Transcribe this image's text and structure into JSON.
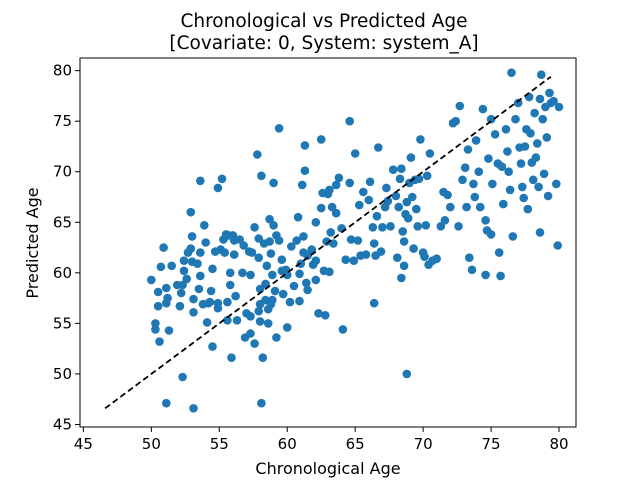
{
  "chart_data": {
    "type": "scatter",
    "title_line1": "Chronological vs Predicted Age",
    "title_line2": "[Covariate: 0, System: system_A]",
    "xlabel": "Chronological Age",
    "ylabel": "Predicted Age",
    "xlim": [
      44.75,
      81.25
    ],
    "ylim": [
      44.75,
      81.25
    ],
    "xticks": [
      45,
      50,
      55,
      60,
      65,
      70,
      75,
      80
    ],
    "yticks": [
      45,
      50,
      55,
      60,
      65,
      70,
      75,
      80
    ],
    "grid": false,
    "legend": "none",
    "point_color": "#1f77b4",
    "identity_line": {
      "x": [
        46.6,
        79.4
      ],
      "y": [
        46.6,
        79.4
      ],
      "color": "#000000",
      "style": "dashed"
    },
    "points": [
      [
        50.0,
        59.3
      ],
      [
        50.3,
        54.4
      ],
      [
        50.5,
        56.7
      ],
      [
        50.3,
        55.0
      ],
      [
        50.6,
        53.2
      ],
      [
        50.5,
        58.1
      ],
      [
        50.7,
        60.6
      ],
      [
        50.9,
        62.5
      ],
      [
        51.1,
        57.0
      ],
      [
        51.1,
        58.5
      ],
      [
        51.2,
        57.5
      ],
      [
        51.3,
        54.3
      ],
      [
        51.5,
        60.7
      ],
      [
        51.9,
        58.8
      ],
      [
        51.1,
        47.1
      ],
      [
        52.1,
        56.7
      ],
      [
        52.2,
        58.0
      ],
      [
        52.3,
        58.8
      ],
      [
        52.4,
        60.2
      ],
      [
        52.4,
        61.2
      ],
      [
        52.6,
        59.4
      ],
      [
        52.7,
        62.0
      ],
      [
        52.9,
        62.4
      ],
      [
        53.0,
        63.6
      ],
      [
        53.0,
        61.1
      ],
      [
        53.1,
        57.4
      ],
      [
        53.1,
        56.1
      ],
      [
        52.9,
        66.0
      ],
      [
        52.3,
        49.7
      ],
      [
        53.1,
        46.6
      ],
      [
        53.4,
        60.9
      ],
      [
        53.5,
        58.4
      ],
      [
        53.6,
        62.0
      ],
      [
        53.6,
        59.7
      ],
      [
        53.6,
        69.1
      ],
      [
        53.8,
        56.9
      ],
      [
        53.9,
        64.7
      ],
      [
        54.0,
        63.0
      ],
      [
        54.1,
        55.1
      ],
      [
        54.2,
        57.0
      ],
      [
        54.3,
        57.1
      ],
      [
        54.4,
        58.2
      ],
      [
        54.5,
        60.4
      ],
      [
        54.5,
        52.7
      ],
      [
        54.7,
        62.1
      ],
      [
        54.9,
        68.4
      ],
      [
        54.9,
        57.0
      ],
      [
        54.9,
        56.5
      ],
      [
        55.1,
        62.3
      ],
      [
        55.2,
        69.3
      ],
      [
        55.3,
        63.3
      ],
      [
        55.4,
        62.0
      ],
      [
        55.5,
        63.8
      ],
      [
        55.6,
        57.1
      ],
      [
        55.6,
        55.3
      ],
      [
        55.7,
        63.7
      ],
      [
        55.8,
        60.0
      ],
      [
        55.8,
        58.8
      ],
      [
        55.9,
        51.6
      ],
      [
        56.0,
        63.7
      ],
      [
        56.1,
        63.2
      ],
      [
        56.1,
        61.8
      ],
      [
        56.2,
        57.7
      ],
      [
        56.3,
        55.3
      ],
      [
        56.5,
        63.3
      ],
      [
        56.7,
        60.0
      ],
      [
        56.8,
        62.7
      ],
      [
        56.9,
        53.6
      ],
      [
        57.0,
        56.0
      ],
      [
        57.2,
        62.1
      ],
      [
        57.3,
        59.8
      ],
      [
        57.3,
        55.7
      ],
      [
        57.3,
        54.0
      ],
      [
        57.4,
        62.0
      ],
      [
        57.6,
        64.5
      ],
      [
        57.6,
        53.0
      ],
      [
        57.8,
        71.7
      ],
      [
        57.9,
        63.4
      ],
      [
        57.9,
        61.5
      ],
      [
        57.9,
        56.2
      ],
      [
        58.0,
        58.4
      ],
      [
        58.0,
        56.9
      ],
      [
        58.0,
        55.2
      ],
      [
        58.1,
        69.6
      ],
      [
        58.1,
        47.1
      ],
      [
        58.2,
        51.6
      ],
      [
        58.3,
        62.9
      ],
      [
        58.4,
        58.9
      ],
      [
        58.4,
        57.3
      ],
      [
        58.5,
        60.7
      ],
      [
        58.6,
        56.4
      ],
      [
        58.6,
        55.0
      ],
      [
        58.7,
        65.3
      ],
      [
        58.7,
        63.1
      ],
      [
        58.8,
        61.9
      ],
      [
        58.8,
        56.9
      ],
      [
        58.9,
        59.8
      ],
      [
        58.9,
        57.3
      ],
      [
        59.0,
        68.9
      ],
      [
        59.0,
        64.7
      ],
      [
        59.1,
        58.2
      ],
      [
        59.2,
        63.7
      ],
      [
        59.2,
        53.6
      ],
      [
        59.4,
        63.2
      ],
      [
        59.4,
        74.3
      ],
      [
        59.6,
        61.3
      ],
      [
        59.6,
        60.2
      ],
      [
        59.7,
        57.9
      ],
      [
        59.9,
        60.3
      ],
      [
        60.0,
        59.8
      ],
      [
        60.0,
        54.6
      ],
      [
        60.2,
        57.1
      ],
      [
        60.3,
        62.6
      ],
      [
        60.5,
        58.7
      ],
      [
        60.7,
        63.2
      ],
      [
        60.8,
        65.5
      ],
      [
        60.9,
        59.9
      ],
      [
        60.9,
        57.2
      ],
      [
        61.0,
        60.9
      ],
      [
        61.1,
        68.7
      ],
      [
        61.2,
        63.6
      ],
      [
        61.2,
        62.0
      ],
      [
        61.3,
        72.6
      ],
      [
        61.3,
        70.1
      ],
      [
        61.4,
        59.0
      ],
      [
        61.5,
        61.7
      ],
      [
        61.5,
        58.3
      ],
      [
        61.8,
        62.3
      ],
      [
        61.9,
        60.8
      ],
      [
        62.1,
        61.2
      ],
      [
        62.1,
        59.3
      ],
      [
        62.1,
        65.0
      ],
      [
        62.3,
        56.0
      ],
      [
        62.5,
        66.4
      ],
      [
        62.5,
        73.2
      ],
      [
        62.6,
        67.9
      ],
      [
        62.7,
        60.2
      ],
      [
        62.8,
        55.8
      ],
      [
        62.9,
        63.1
      ],
      [
        63.0,
        67.8
      ],
      [
        63.1,
        68.2
      ],
      [
        63.1,
        60.1
      ],
      [
        63.2,
        64.0
      ],
      [
        63.3,
        66.5
      ],
      [
        63.4,
        62.9
      ],
      [
        63.6,
        65.9
      ],
      [
        63.6,
        68.7
      ],
      [
        63.8,
        69.4
      ],
      [
        64.0,
        64.4
      ],
      [
        64.1,
        54.4
      ],
      [
        64.3,
        61.3
      ],
      [
        64.6,
        68.9
      ],
      [
        64.6,
        75.0
      ],
      [
        64.7,
        63.3
      ],
      [
        64.9,
        61.2
      ],
      [
        65.0,
        71.8
      ],
      [
        65.2,
        63.2
      ],
      [
        65.3,
        66.7
      ],
      [
        65.4,
        61.7
      ],
      [
        65.6,
        68.0
      ],
      [
        65.8,
        61.8
      ],
      [
        66.0,
        67.2
      ],
      [
        66.1,
        69.0
      ],
      [
        66.3,
        64.5
      ],
      [
        66.4,
        62.9
      ],
      [
        66.4,
        57.0
      ],
      [
        66.5,
        61.7
      ],
      [
        66.6,
        65.6
      ],
      [
        66.7,
        72.4
      ],
      [
        66.9,
        62.1
      ],
      [
        67.0,
        64.5
      ],
      [
        67.2,
        66.5
      ],
      [
        67.3,
        68.4
      ],
      [
        67.4,
        67.1
      ],
      [
        67.6,
        64.6
      ],
      [
        67.8,
        70.2
      ],
      [
        68.0,
        67.6
      ],
      [
        68.1,
        61.5
      ],
      [
        68.2,
        66.5
      ],
      [
        68.3,
        69.3
      ],
      [
        68.4,
        70.3
      ],
      [
        68.4,
        59.5
      ],
      [
        68.5,
        64.1
      ],
      [
        68.6,
        63.1
      ],
      [
        68.6,
        60.7
      ],
      [
        68.7,
        65.8
      ],
      [
        68.8,
        67.0
      ],
      [
        68.8,
        50.0
      ],
      [
        68.9,
        65.4
      ],
      [
        69.0,
        68.9
      ],
      [
        69.1,
        71.4
      ],
      [
        69.2,
        67.5
      ],
      [
        69.3,
        62.4
      ],
      [
        69.4,
        69.2
      ],
      [
        69.5,
        66.3
      ],
      [
        69.6,
        64.6
      ],
      [
        69.7,
        69.3
      ],
      [
        69.8,
        73.2
      ],
      [
        70.0,
        62.0
      ],
      [
        70.1,
        61.6
      ],
      [
        70.2,
        64.7
      ],
      [
        70.3,
        69.6
      ],
      [
        70.4,
        60.8
      ],
      [
        70.5,
        71.8
      ],
      [
        70.7,
        61.2
      ],
      [
        71.0,
        61.4
      ],
      [
        71.3,
        64.6
      ],
      [
        71.5,
        68.0
      ],
      [
        71.6,
        65.2
      ],
      [
        71.8,
        67.7
      ],
      [
        72.0,
        66.5
      ],
      [
        72.2,
        74.8
      ],
      [
        72.4,
        75.0
      ],
      [
        72.6,
        64.6
      ],
      [
        72.7,
        76.5
      ],
      [
        72.9,
        69.2
      ],
      [
        73.1,
        70.4
      ],
      [
        73.2,
        66.5
      ],
      [
        73.3,
        72.2
      ],
      [
        73.4,
        61.5
      ],
      [
        73.6,
        60.3
      ],
      [
        73.7,
        68.8
      ],
      [
        73.8,
        67.5
      ],
      [
        73.9,
        73.1
      ],
      [
        74.1,
        70.0
      ],
      [
        74.2,
        66.5
      ],
      [
        74.4,
        76.2
      ],
      [
        74.6,
        65.2
      ],
      [
        74.6,
        59.8
      ],
      [
        74.7,
        64.2
      ],
      [
        74.8,
        71.3
      ],
      [
        75.0,
        63.8
      ],
      [
        75.0,
        75.2
      ],
      [
        75.1,
        68.8
      ],
      [
        75.3,
        73.7
      ],
      [
        75.5,
        70.8
      ],
      [
        75.6,
        62.0
      ],
      [
        75.7,
        59.7
      ],
      [
        75.8,
        70.5
      ],
      [
        75.9,
        66.8
      ],
      [
        76.1,
        74.2
      ],
      [
        76.2,
        72.0
      ],
      [
        76.3,
        70.0
      ],
      [
        76.4,
        68.2
      ],
      [
        76.5,
        79.8
      ],
      [
        76.6,
        63.6
      ],
      [
        76.8,
        75.2
      ],
      [
        77.0,
        76.8
      ],
      [
        77.1,
        72.4
      ],
      [
        77.2,
        70.8
      ],
      [
        77.3,
        68.5
      ],
      [
        77.4,
        67.4
      ],
      [
        77.5,
        72.5
      ],
      [
        77.6,
        74.2
      ],
      [
        77.7,
        66.3
      ],
      [
        77.8,
        77.4
      ],
      [
        77.9,
        73.8
      ],
      [
        78.0,
        70.9
      ],
      [
        78.1,
        69.2
      ],
      [
        78.2,
        75.8
      ],
      [
        78.3,
        71.4
      ],
      [
        78.4,
        72.8
      ],
      [
        78.5,
        68.5
      ],
      [
        78.6,
        64.0
      ],
      [
        78.6,
        77.2
      ],
      [
        78.7,
        79.6
      ],
      [
        78.8,
        75.2
      ],
      [
        78.9,
        69.8
      ],
      [
        79.0,
        76.4
      ],
      [
        79.1,
        73.4
      ],
      [
        79.2,
        67.6
      ],
      [
        79.3,
        77.8
      ],
      [
        79.4,
        76.8
      ],
      [
        79.6,
        77.0
      ],
      [
        79.8,
        68.8
      ],
      [
        79.9,
        62.7
      ],
      [
        80.0,
        76.4
      ]
    ]
  }
}
